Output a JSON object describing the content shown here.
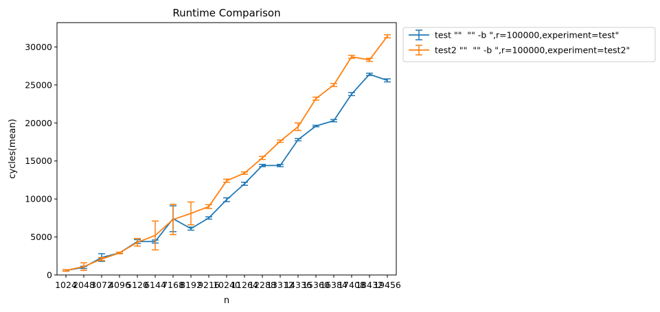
{
  "chart_data": {
    "type": "line",
    "title": "Runtime Comparison",
    "xlabel": "n",
    "ylabel": "cycles(mean)",
    "categories": [
      "1024",
      "2048",
      "3072",
      "4096",
      "5120",
      "6144",
      "7168",
      "8192",
      "9216",
      "10240",
      "11264",
      "12288",
      "13312",
      "14336",
      "15360",
      "16384",
      "17408",
      "18432",
      "19456"
    ],
    "x_tick_labels": [
      "1024",
      "2048",
      "3072",
      "4096",
      "5120",
      "6144",
      "7168",
      "8192",
      "9216",
      "10240",
      "11264",
      "12288",
      "13312",
      "14336",
      "15360",
      "16384",
      "17408",
      "18432",
      "19456"
    ],
    "ylim": [
      0,
      33200
    ],
    "yticks": [
      0,
      5000,
      10000,
      15000,
      20000,
      25000,
      30000
    ],
    "ytick_labels": [
      "0",
      "5000",
      "10000",
      "15000",
      "20000",
      "25000",
      "30000"
    ],
    "grid": false,
    "legend_position": "outside-upper-right",
    "series": [
      {
        "name": "test \"\"  \"\" -b \",r=100000,experiment=test\"",
        "color": "#1f77b4",
        "values": [
          600,
          1000,
          2300,
          2900,
          4400,
          4400,
          7400,
          6100,
          7500,
          9900,
          12000,
          14400,
          14400,
          17800,
          19600,
          20300,
          23800,
          26400,
          25600
        ],
        "errors": [
          100,
          150,
          500,
          100,
          250,
          200,
          1700,
          200,
          150,
          250,
          200,
          150,
          150,
          150,
          100,
          150,
          200,
          150,
          200
        ]
      },
      {
        "name": "test2 \"\"  \"\" -b \",r=100000,experiment=test2\"",
        "color": "#ff7f0e",
        "values": [
          600,
          1100,
          2100,
          2900,
          4300,
          5200,
          7300,
          8100,
          9000,
          12400,
          13400,
          15400,
          17600,
          19500,
          23200,
          25000,
          28700,
          28300,
          31400
        ],
        "errors": [
          100,
          500,
          200,
          100,
          500,
          1900,
          2000,
          1500,
          250,
          200,
          150,
          200,
          150,
          500,
          200,
          200,
          200,
          200,
          200
        ]
      }
    ]
  }
}
